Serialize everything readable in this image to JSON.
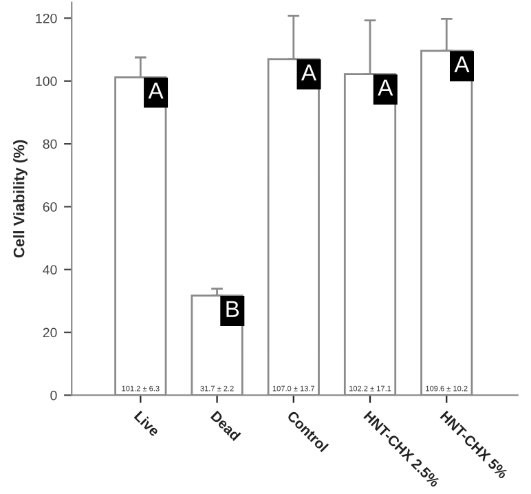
{
  "chart_data": {
    "type": "bar",
    "ylabel": "Cell Viability (%)",
    "categories": [
      "Live",
      "Dead",
      "Control",
      "HNT-CHX 2.5%",
      "HNT-CHX 5%"
    ],
    "values": [
      101.2,
      31.7,
      107.0,
      102.2,
      109.6
    ],
    "errors": [
      [
        101.2,
        107.5
      ],
      [
        31.7,
        33.9
      ],
      [
        107.0,
        120.7
      ],
      [
        102.2,
        119.3
      ],
      [
        109.6,
        119.8
      ]
    ],
    "value_labels": [
      "101.2 ± 6.3",
      "31.7 ± 2.2",
      "107.0 ± 13.7",
      "102.2 ± 17.1",
      "109.6 ± 10.2"
    ],
    "color": "#ffffff",
    "ylim": [
      0,
      125
    ],
    "yticks": [
      0,
      20,
      40,
      60,
      80,
      100,
      120
    ],
    "grid": false,
    "legend": false,
    "annotations": [
      {
        "text": "A",
        "x": "Live",
        "y": 101.2
      },
      {
        "text": "B",
        "x": "Dead",
        "y": 31.7
      },
      {
        "text": "A",
        "x": "Control",
        "y": 107.0
      },
      {
        "text": "A",
        "x": "HNT-CHX 2.5%",
        "y": 102.2
      },
      {
        "text": "A",
        "x": "HNT-CHX 5%",
        "y": 109.6
      }
    ]
  }
}
